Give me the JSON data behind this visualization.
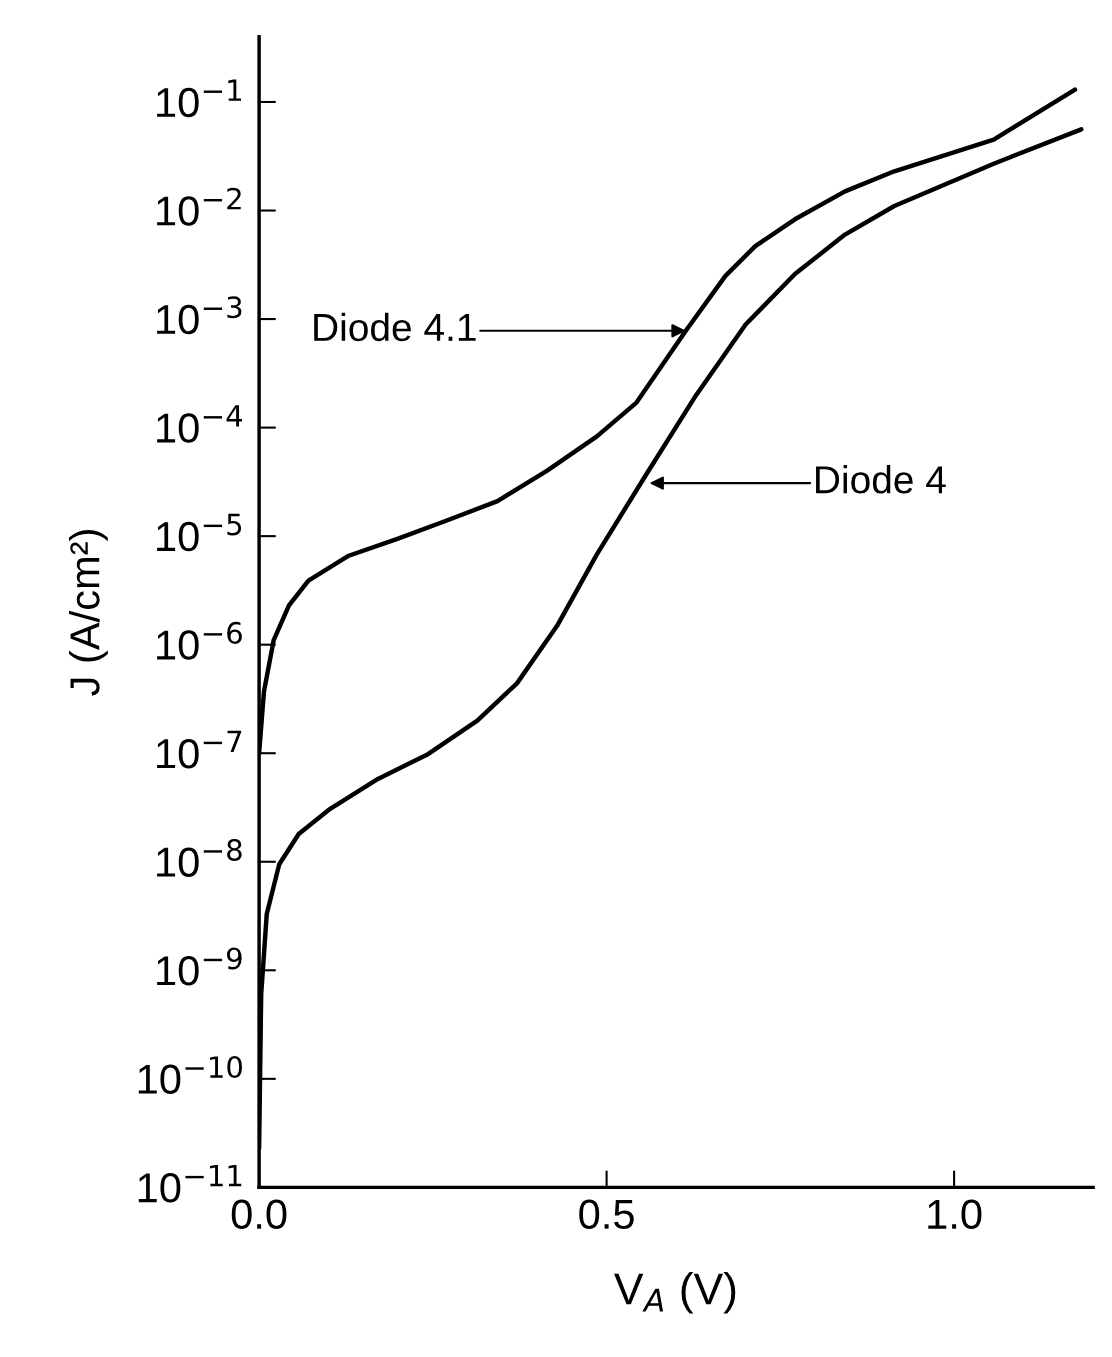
{
  "chart_data": {
    "type": "line",
    "xlabel": "V$_{A}$ (V)",
    "ylabel": "J (A/cm²)",
    "log": "y",
    "grid": false,
    "marker": "none",
    "line_style": "solid",
    "xlim": [
      0,
      1.2
    ],
    "xticks": [
      {
        "value": 0,
        "label": "0.0"
      },
      0.5,
      {
        "value": 1,
        "label": "1.0"
      }
    ],
    "ylim": [
      1e-11,
      0.4
    ],
    "yticks": [
      {
        "value": 1e-11,
        "label": "10$^{−11}$"
      },
      {
        "value": 1e-10,
        "label": "10$^{−10}$"
      },
      {
        "value": 1e-09,
        "label": "10$^{−9}$"
      },
      {
        "value": 1e-08,
        "label": "10$^{−8}$"
      },
      {
        "value": 1e-07,
        "label": "10$^{−7}$"
      },
      {
        "value": 1e-06,
        "label": "10$^{−6}$"
      },
      {
        "value": 1e-05,
        "label": "10$^{−5}$"
      },
      {
        "value": 0.0001,
        "label": "10$^{−4}$"
      },
      {
        "value": 0.001,
        "label": "10$^{−3}$"
      },
      {
        "value": 0.01,
        "label": "10$^{−2}$"
      },
      {
        "value": 0.1,
        "label": "10$^{−1}$"
      }
    ],
    "series": [
      {
        "color": "#000000",
        "x": [
          0,
          0.007,
          0.021,
          0.043,
          0.071,
          0.129,
          0.2,
          0.271,
          0.343,
          0.414,
          0.486,
          0.543,
          0.614,
          0.671,
          0.714,
          0.771,
          0.843,
          0.914,
          1.057,
          1.174
        ],
        "values": [
          1e-07,
          3.7e-07,
          1.1e-06,
          2.3e-06,
          3.9e-06,
          6.6e-06,
          9.5e-06,
          1.4e-05,
          2.1e-05,
          4e-05,
          8.3e-05,
          0.00017,
          0.00078,
          0.0025,
          0.0047,
          0.0083,
          0.015,
          0.023,
          0.045,
          0.13
        ]
      },
      {
        "color": "#000000",
        "x": [
          0,
          0.003,
          0.011,
          0.029,
          0.057,
          0.1,
          0.171,
          0.243,
          0.314,
          0.371,
          0.429,
          0.486,
          0.557,
          0.629,
          0.7,
          0.771,
          0.843,
          0.914,
          1.057,
          1.183
        ],
        "values": [
          2.3e-11,
          6e-10,
          3.3e-09,
          9.5e-09,
          1.8e-08,
          3e-08,
          5.8e-08,
          9.8e-08,
          2e-07,
          4.4e-07,
          1.5e-06,
          6.8e-06,
          3.7e-05,
          0.0002,
          0.00089,
          0.0026,
          0.006,
          0.011,
          0.027,
          0.056
        ]
      }
    ],
    "annotations": [
      {
        "text": "Diode 4.1",
        "x": 0.614,
        "y": 0.00078
      },
      "Diode 4"
    ]
  }
}
